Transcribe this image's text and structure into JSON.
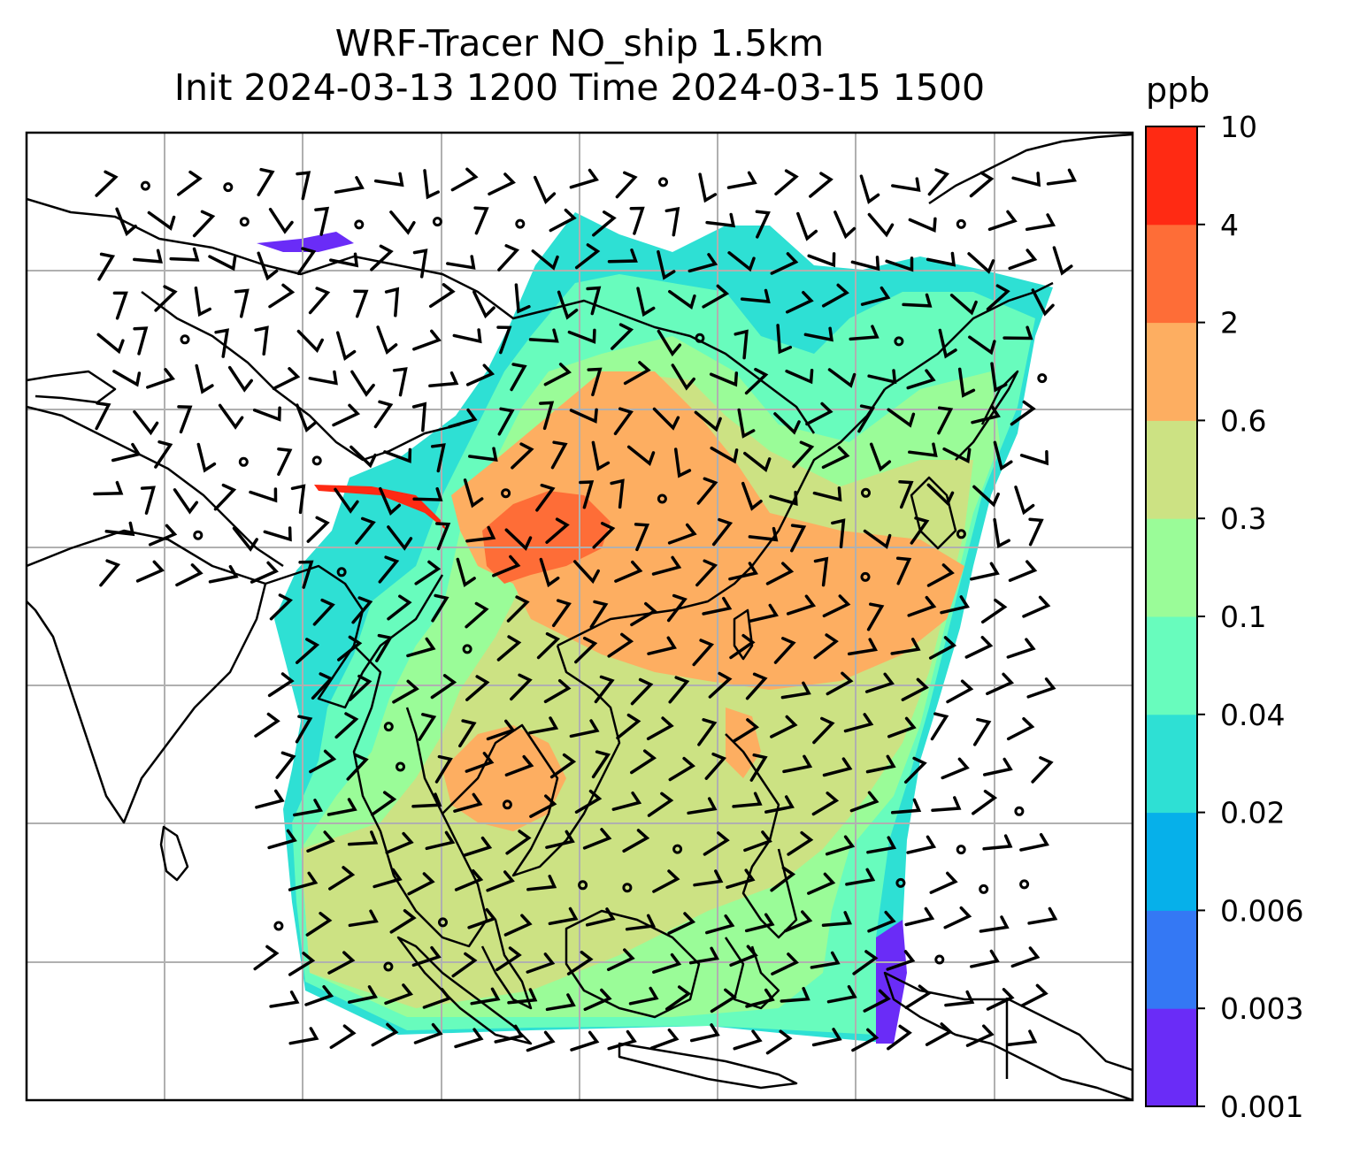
{
  "title": {
    "line1": "WRF-Tracer NO_ship 1.5km",
    "line2": "Init 2024-03-13 1200 Time 2024-03-15 1500"
  },
  "colorbar": {
    "unit": "ppb",
    "levels": [
      "0.001",
      "0.003",
      "0.006",
      "0.02",
      "0.04",
      "0.1",
      "0.3",
      "0.6",
      "2",
      "4",
      "10"
    ],
    "colors": [
      "#6a2cf7",
      "#3478f4",
      "#06b0ea",
      "#2ee0d4",
      "#68fcbd",
      "#9afc98",
      "#cce283",
      "#fdae61",
      "#fe6d37",
      "#ff2a13"
    ]
  },
  "map_colors": {
    "land_outline": "#000000",
    "gridline": "#b0b0b0",
    "wind_barb": "#000000"
  }
}
